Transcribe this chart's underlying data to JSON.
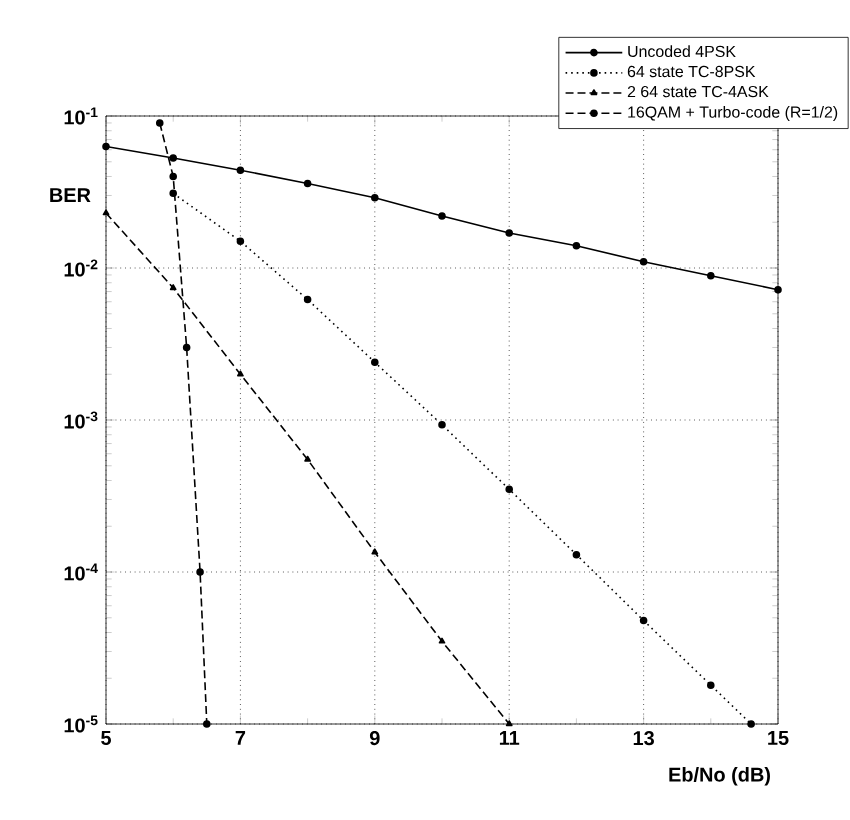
{
  "chart_data": {
    "type": "line",
    "xlabel": "Eb/No (dB)",
    "ylabel": "BER",
    "log": "y",
    "grid": true,
    "legend": "top right",
    "xlim": [
      5,
      15
    ],
    "xticks": [
      5,
      7,
      9,
      11,
      13,
      15
    ],
    "ylim": [
      1e-05,
      0.1
    ],
    "yticks": [
      {
        "value": 1e-05,
        "label": "10$^{-5}$"
      },
      {
        "value": 0.0001,
        "label": "10$^{-4}$"
      },
      {
        "value": 0.001,
        "label": "10$^{-3}$"
      },
      {
        "value": 0.01,
        "label": "10$^{-2}$"
      },
      {
        "value": 0.1,
        "label": "10$^{-1}$"
      }
    ],
    "series": [
      {
        "name": "Uncoded 4PSK",
        "color": "#000000",
        "line_style": "solid",
        "marker": "circle",
        "x": [
          5,
          6,
          7,
          8,
          9,
          10,
          11,
          12,
          13,
          14,
          15
        ],
        "values": [
          0.063,
          0.053,
          0.044,
          0.036,
          0.029,
          0.022,
          0.017,
          0.014,
          0.011,
          0.0089,
          0.0072
        ]
      },
      {
        "name": "64 state TC-8PSK",
        "color": "#000000",
        "line_style": "dotted",
        "marker": "circle",
        "x": [
          6,
          7,
          8,
          9,
          10,
          11,
          12,
          13,
          14,
          14.6
        ],
        "values": [
          0.031,
          0.015,
          0.0062,
          0.0024,
          0.00093,
          0.00035,
          0.00013,
          4.8e-05,
          1.8e-05,
          1e-05
        ]
      },
      {
        "name": "2  64 state TC-4ASK",
        "color": "#000000",
        "line_style": "dashed",
        "marker": "triangle",
        "x": [
          5,
          6,
          7,
          8,
          9,
          10,
          11
        ],
        "values": [
          0.023,
          0.0074,
          0.002,
          0.00055,
          0.000135,
          3.5e-05,
          1e-05
        ]
      },
      {
        "name": "16QAM + Turbo-code (R=1/2)",
        "color": "#000000",
        "line_style": "dashed",
        "marker": "circle",
        "x": [
          5.8,
          6.0,
          6.2,
          6.4,
          6.5
        ],
        "values": [
          0.09,
          0.04,
          0.003,
          0.0001,
          1e-05
        ]
      }
    ]
  }
}
